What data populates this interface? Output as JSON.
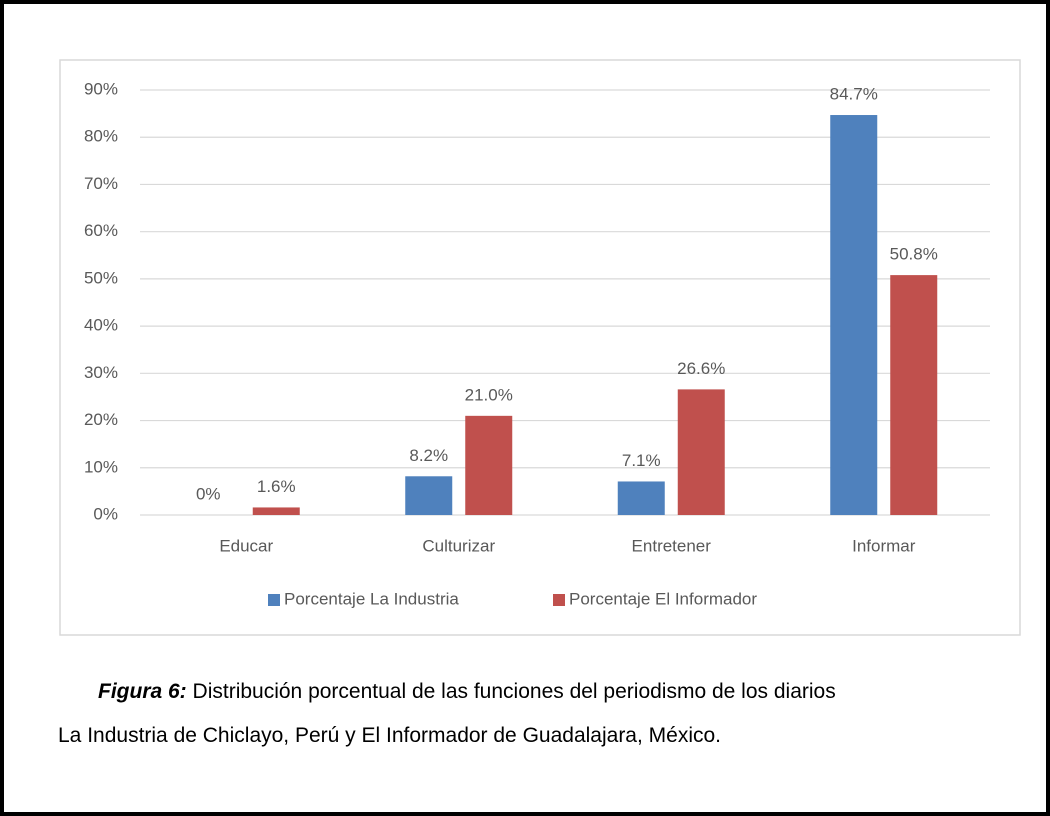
{
  "chart_data": {
    "type": "bar",
    "categories": [
      "Educar",
      "Culturizar",
      "Entretener",
      "Informar"
    ],
    "series": [
      {
        "name": "Porcentaje La Industria",
        "color": "#4f81bd",
        "values": [
          0,
          8.2,
          7.1,
          84.7
        ],
        "value_labels": [
          "0%",
          "8.2%",
          "7.1%",
          "84.7%"
        ]
      },
      {
        "name": "Porcentaje El Informador",
        "color": "#c0504d",
        "values": [
          1.6,
          21.0,
          26.6,
          50.8
        ],
        "value_labels": [
          "1.6%",
          "21.0%",
          "26.6%",
          "50.8%"
        ]
      }
    ],
    "ylim": [
      0,
      90
    ],
    "yticks": [
      {
        "value": 0,
        "label": "0%"
      },
      {
        "value": 10,
        "label": "10%"
      },
      {
        "value": 20,
        "label": "20%"
      },
      {
        "value": 30,
        "label": "30%"
      },
      {
        "value": 40,
        "label": "40%"
      },
      {
        "value": 50,
        "label": "50%"
      },
      {
        "value": 60,
        "label": "60%"
      },
      {
        "value": 70,
        "label": "70%"
      },
      {
        "value": 80,
        "label": "80%"
      },
      {
        "value": 90,
        "label": "90%"
      }
    ],
    "grid": true,
    "legend": "bottom",
    "caption": {
      "label": "Figura 6:",
      "lines": [
        "Distribución porcentual de las funciones del periodismo de los diarios",
        "La Industria de Chiclayo, Perú y El Informador de Guadalajara, México."
      ]
    }
  }
}
